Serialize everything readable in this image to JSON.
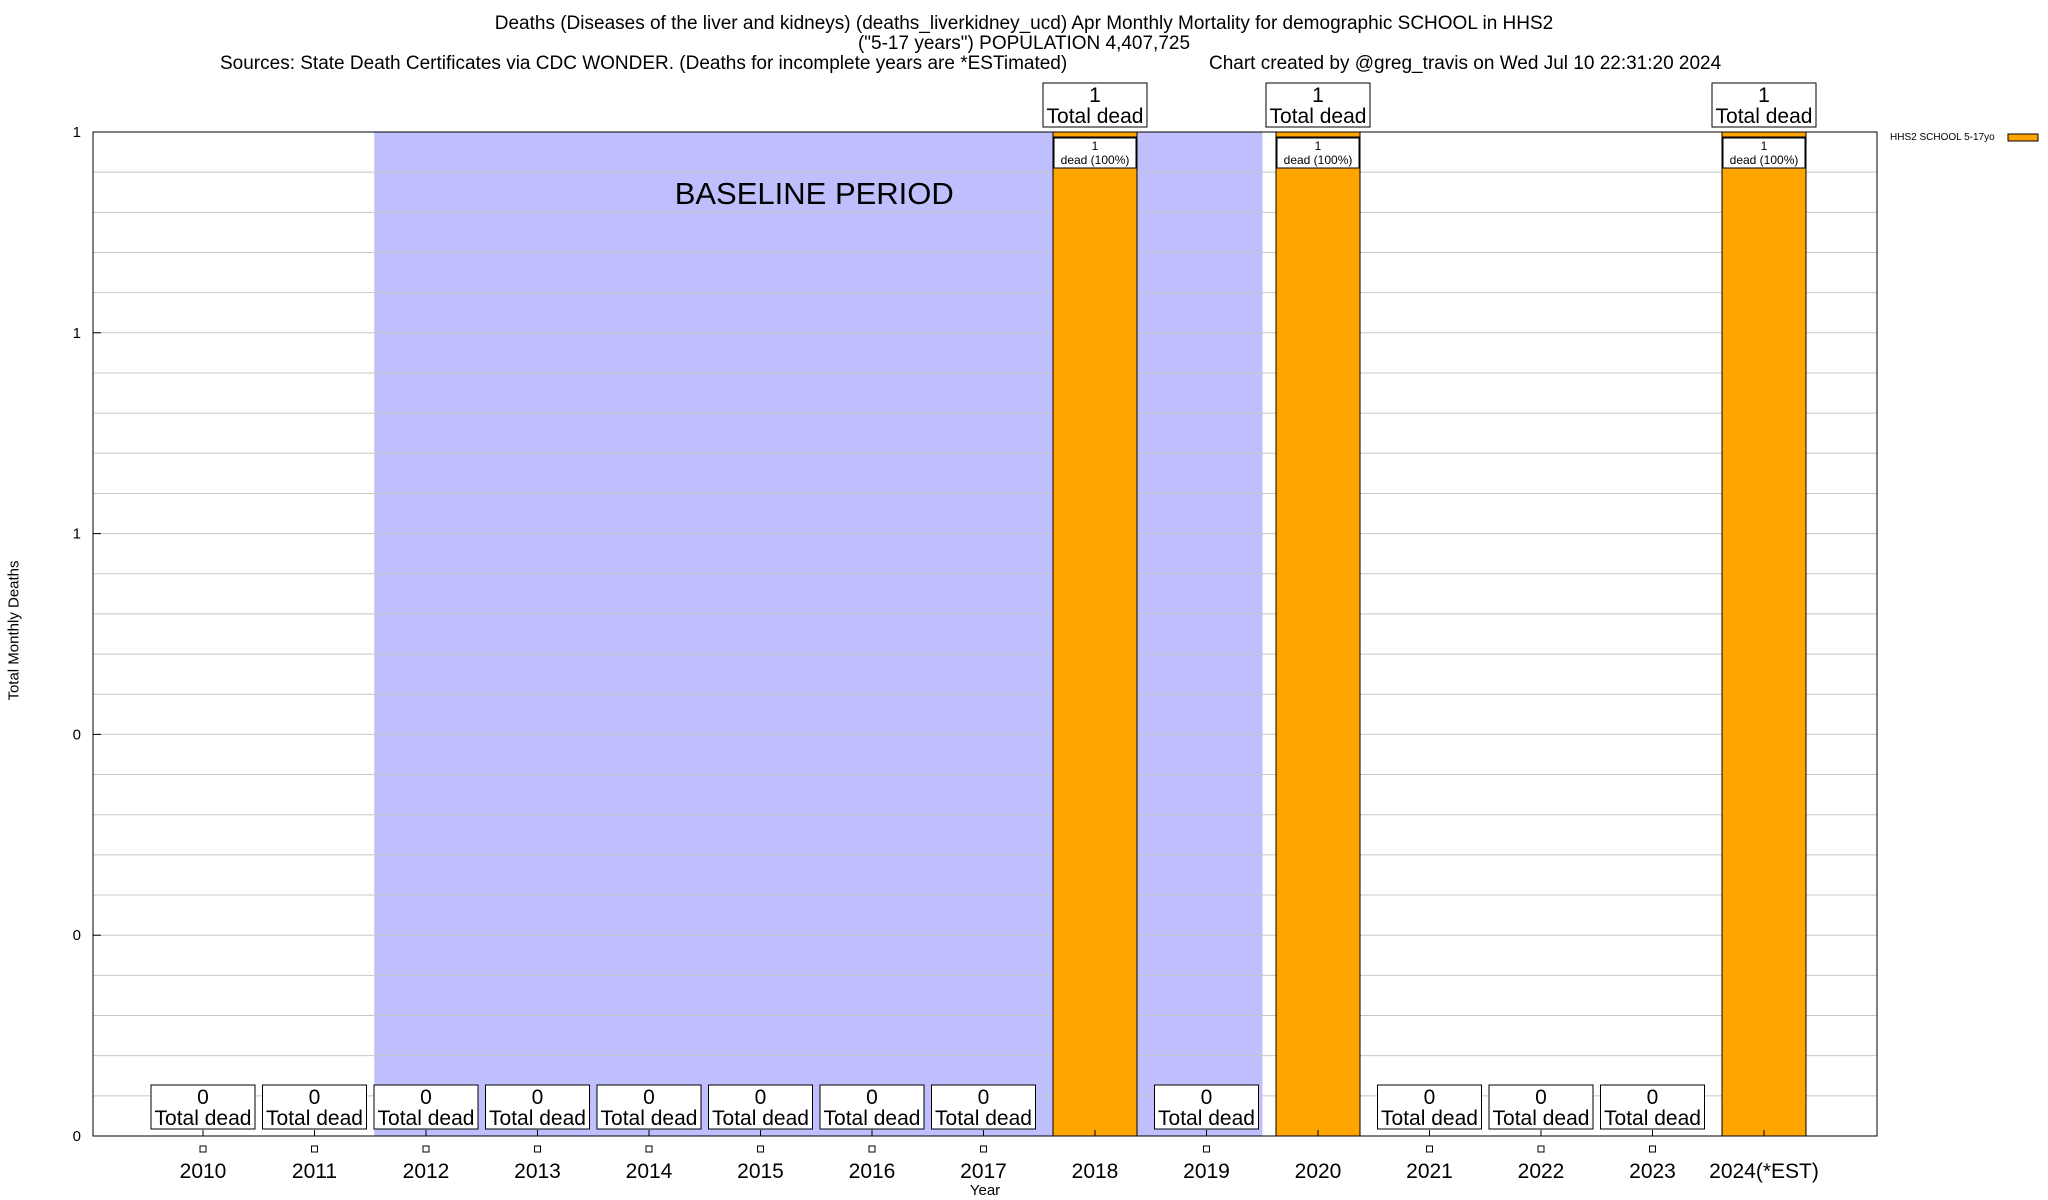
{
  "title": {
    "line1": "Deaths (Diseases of the liver and kidneys) (deaths_liverkidney_ucd) Apr Monthly Mortality for demographic SCHOOL in HHS2",
    "line2": "(\"5-17 years\") POPULATION 4,407,725",
    "sources": "Sources: State Death Certificates via CDC WONDER. (Deaths for incomplete years are *ESTimated)",
    "credit": "Chart created by @greg_travis on Wed Jul 10 22:31:20 2024"
  },
  "colors": {
    "bar": "#ffa500",
    "baseline": "#bfbffd",
    "grid": "#c8c8c8"
  },
  "chart_data": {
    "type": "bar",
    "xlabel": "Year",
    "ylabel": "Total Monthly Deaths",
    "ylim": [
      0,
      1
    ],
    "ytick_labels": [
      "0",
      "0",
      "0",
      "1",
      "1",
      "1"
    ],
    "categories": [
      "2010",
      "2011",
      "2012",
      "2013",
      "2014",
      "2015",
      "2016",
      "2017",
      "2018",
      "2019",
      "2020",
      "2021",
      "2022",
      "2023",
      "2024(*EST)"
    ],
    "series": [
      {
        "name": "HHS2 SCHOOL 5-17yo",
        "values": [
          0,
          0,
          0,
          0,
          0,
          0,
          0,
          0,
          1,
          0,
          1,
          0,
          0,
          0,
          1
        ]
      }
    ],
    "total_label": "Total dead",
    "bar_inner_label": "dead (100%)",
    "baseline": {
      "label": "BASELINE PERIOD",
      "from": "2012",
      "to": "2019"
    },
    "grid": true,
    "legend_position": "top-right"
  }
}
